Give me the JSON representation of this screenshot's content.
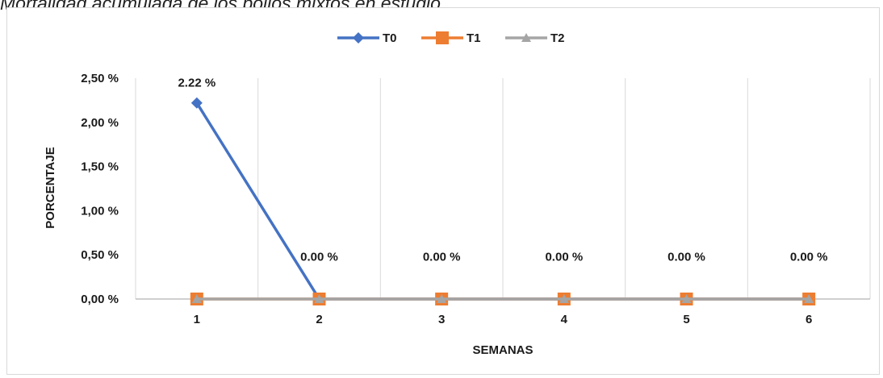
{
  "caption": "Mortalidad acumulada de los pollos mixtos en estudio",
  "chart_data": {
    "type": "line",
    "title": "",
    "xlabel": "SEMANAS",
    "ylabel": "PORCENTAJE",
    "categories": [
      "1",
      "2",
      "3",
      "4",
      "5",
      "6"
    ],
    "ylim": [
      0,
      2.5
    ],
    "yticks": [
      "0,00 %",
      "0,50 %",
      "1,00 %",
      "1,50 %",
      "2,00 %",
      "2,50 %"
    ],
    "grid": "vertical",
    "legend_position": "top",
    "series": [
      {
        "name": "T0",
        "values": [
          2.22,
          0,
          0,
          0,
          0,
          0
        ],
        "color": "#4472c4",
        "marker": "diamond"
      },
      {
        "name": "T1",
        "values": [
          0,
          0,
          0,
          0,
          0,
          0
        ],
        "color": "#ed7d31",
        "marker": "square"
      },
      {
        "name": "T2",
        "values": [
          0,
          0,
          0,
          0,
          0,
          0
        ],
        "color": "#a5a5a5",
        "marker": "triangle"
      }
    ],
    "data_labels": [
      "2.22 %",
      "0.00 %",
      "0.00 %",
      "0.00 %",
      "0.00 %",
      "0.00 %"
    ]
  }
}
